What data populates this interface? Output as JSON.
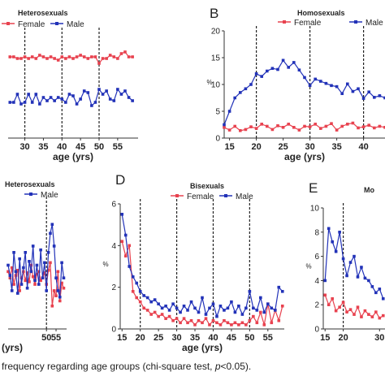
{
  "colors": {
    "female": "#e8424f",
    "male": "#2232b8",
    "axis": "#333333",
    "text": "#222222"
  },
  "caption": {
    "prefix": "frequency regarding age groups (chi-square test, ",
    "p": "p",
    "suffix": "<0.05)."
  },
  "chart_data": [
    {
      "id": "A",
      "type": "line",
      "title": "Heterosexuals",
      "panel_letter": "",
      "xlabel": "age (yrs)",
      "ylabel": "",
      "xlim": [
        25.5,
        60.5
      ],
      "ylim": [
        30,
        95
      ],
      "xticks": [
        "30",
        "35",
        "40",
        "45",
        "50",
        "55"
      ],
      "xtick_values": [
        30,
        35,
        40,
        45,
        50,
        55
      ],
      "yticks": [],
      "vlines": [
        30,
        40,
        50
      ],
      "legend": [
        "Female",
        "Male"
      ],
      "legend_position": "top",
      "series": [
        {
          "name": "Female",
          "x": [
            26,
            27,
            28,
            29,
            30,
            31,
            32,
            33,
            34,
            35,
            36,
            37,
            38,
            39,
            40,
            41,
            42,
            43,
            44,
            45,
            46,
            47,
            48,
            49,
            50,
            51,
            52,
            53,
            54,
            55,
            56,
            57,
            58,
            59
          ],
          "values": [
            80,
            80,
            79,
            79,
            80,
            79,
            80,
            79,
            81,
            80,
            79,
            80,
            79,
            78,
            80,
            79,
            80,
            79,
            80,
            81,
            80,
            79,
            80,
            80,
            76,
            79,
            79,
            81,
            80,
            79,
            82,
            83,
            80,
            80
          ]
        },
        {
          "name": "Male",
          "x": [
            26,
            27,
            28,
            29,
            30,
            31,
            32,
            33,
            34,
            35,
            36,
            37,
            38,
            39,
            40,
            41,
            42,
            43,
            44,
            45,
            46,
            47,
            48,
            49,
            50,
            51,
            52,
            53,
            54,
            55,
            56,
            57,
            58,
            59
          ],
          "values": [
            52,
            52,
            57,
            51,
            52,
            57,
            52,
            57,
            51,
            55,
            53,
            55,
            53,
            55,
            54,
            52,
            57,
            56,
            51,
            54,
            59,
            58,
            50,
            52,
            60,
            57,
            59,
            54,
            53,
            60,
            57,
            59,
            55,
            53
          ]
        }
      ]
    },
    {
      "id": "B",
      "type": "line",
      "title": "Homosexuals",
      "panel_letter": "B",
      "xlabel": "age (yrs)",
      "ylabel": "%",
      "xlim": [
        14,
        44
      ],
      "ylim": [
        0,
        20
      ],
      "xticks": [
        "15",
        "20",
        "25",
        "30",
        "35",
        "40"
      ],
      "xtick_values": [
        15,
        20,
        25,
        30,
        35,
        40
      ],
      "yticks": [
        "0",
        "5",
        "10",
        "15",
        "20"
      ],
      "ytick_values": [
        0,
        5,
        10,
        15,
        20
      ],
      "vlines": [
        20,
        30,
        40
      ],
      "legend": [
        "Female",
        "Male"
      ],
      "legend_position": "top",
      "series": [
        {
          "name": "Female",
          "x": [
            14,
            15,
            16,
            17,
            18,
            19,
            20,
            21,
            22,
            23,
            24,
            25,
            26,
            27,
            28,
            29,
            30,
            31,
            32,
            33,
            34,
            35,
            36,
            37,
            38,
            39,
            40,
            41,
            42,
            43,
            44
          ],
          "values": [
            2.0,
            1.5,
            2.2,
            1.4,
            1.6,
            2.1,
            1.8,
            2.6,
            2.2,
            1.6,
            2.3,
            2.0,
            2.6,
            2.0,
            1.5,
            2.2,
            2.1,
            2.6,
            1.8,
            2.2,
            2.7,
            1.5,
            2.2,
            2.6,
            2.8,
            1.9,
            2.1,
            2.4,
            1.9,
            2.2,
            2.0
          ]
        },
        {
          "name": "Male",
          "x": [
            14,
            15,
            16,
            17,
            18,
            19,
            20,
            21,
            22,
            23,
            24,
            25,
            26,
            27,
            28,
            29,
            30,
            31,
            32,
            33,
            34,
            35,
            36,
            37,
            38,
            39,
            40,
            41,
            42,
            43,
            44
          ],
          "values": [
            2.5,
            5.0,
            7.5,
            8.5,
            9.2,
            10.0,
            12.0,
            11.5,
            12.5,
            13.0,
            12.8,
            14.5,
            13.2,
            14.1,
            12.7,
            11.3,
            9.8,
            11.0,
            10.6,
            10.2,
            9.8,
            9.6,
            8.3,
            10.1,
            8.7,
            9.2,
            7.4,
            8.6,
            7.6,
            7.9,
            7.5
          ]
        }
      ]
    },
    {
      "id": "C",
      "type": "line",
      "title": "Heterosexuals",
      "panel_letter": "",
      "xlabel": "(yrs)",
      "ylabel": "",
      "xlim": [
        30,
        60.5
      ],
      "ylim": [
        0,
        10
      ],
      "xticks": [
        "50",
        "55"
      ],
      "xtick_values": [
        50,
        55
      ],
      "yticks": [],
      "vlines": [
        50
      ],
      "legend": [
        "Male"
      ],
      "legend_position": "top",
      "series": [
        {
          "name": "Female",
          "x": [
            30,
            31,
            32,
            33,
            34,
            35,
            36,
            37,
            38,
            39,
            40,
            41,
            42,
            43,
            44,
            45,
            46,
            47,
            48,
            49,
            50,
            51,
            52,
            53,
            54,
            55,
            56,
            57,
            58,
            59
          ],
          "values": [
            4.5,
            4.0,
            4.8,
            3.5,
            4.2,
            4.6,
            3.0,
            4.0,
            4.5,
            3.8,
            4.4,
            3.7,
            5.0,
            4.1,
            3.5,
            4.3,
            4.5,
            3.8,
            4.0,
            4.4,
            3.5,
            4.6,
            5.2,
            1.8,
            3.0,
            2.6,
            4.5,
            2.2,
            3.6,
            3.2
          ]
        },
        {
          "name": "Male",
          "x": [
            30,
            31,
            32,
            33,
            34,
            35,
            36,
            37,
            38,
            39,
            40,
            41,
            42,
            43,
            44,
            45,
            46,
            47,
            48,
            49,
            50,
            51,
            52,
            53,
            54,
            55,
            56,
            57,
            58,
            59
          ],
          "values": [
            5.0,
            4.2,
            3.0,
            6.0,
            4.5,
            2.8,
            5.5,
            3.5,
            4.8,
            6.0,
            3.2,
            5.3,
            4.5,
            6.5,
            3.8,
            5.0,
            3.5,
            6.2,
            4.0,
            5.2,
            3.0,
            6.0,
            7.5,
            8.2,
            6.5,
            4.0,
            3.0,
            2.5,
            5.2,
            4.0
          ]
        }
      ]
    },
    {
      "id": "D",
      "type": "line",
      "title": "Bisexuals",
      "panel_letter": "D",
      "xlabel": "age (yrs)",
      "ylabel": "%",
      "xlim": [
        14.5,
        59.5
      ],
      "ylim": [
        0,
        6
      ],
      "xticks": [
        "15",
        "20",
        "25",
        "30",
        "35",
        "40",
        "45",
        "50",
        "55"
      ],
      "xtick_values": [
        15,
        20,
        25,
        30,
        35,
        40,
        45,
        50,
        55
      ],
      "yticks": [
        "0",
        "2",
        "4",
        "6"
      ],
      "ytick_values": [
        0,
        2,
        4,
        6
      ],
      "vlines": [
        20,
        30,
        40,
        50
      ],
      "legend": [
        "Female",
        "Male"
      ],
      "legend_position": "top",
      "series": [
        {
          "name": "Female",
          "x": [
            15,
            16,
            17,
            18,
            19,
            20,
            21,
            22,
            23,
            24,
            25,
            26,
            27,
            28,
            29,
            30,
            31,
            32,
            33,
            34,
            35,
            36,
            37,
            38,
            39,
            40,
            41,
            42,
            43,
            44,
            45,
            46,
            47,
            48,
            49,
            50,
            51,
            52,
            53,
            54,
            55,
            56,
            57,
            58,
            59
          ],
          "values": [
            4.2,
            3.5,
            4.0,
            1.8,
            1.5,
            1.3,
            1.0,
            0.9,
            0.7,
            0.8,
            0.6,
            0.7,
            0.5,
            0.6,
            0.4,
            0.5,
            0.3,
            0.5,
            0.3,
            0.4,
            0.2,
            0.4,
            0.3,
            0.5,
            0.2,
            0.4,
            0.3,
            0.2,
            0.4,
            0.3,
            0.2,
            0.3,
            0.2,
            0.3,
            0.2,
            0.4,
            0.6,
            0.3,
            0.8,
            0.2,
            1.2,
            0.3,
            0.9,
            0.4,
            1.1
          ]
        },
        {
          "name": "Male",
          "x": [
            15,
            16,
            17,
            18,
            19,
            20,
            21,
            22,
            23,
            24,
            25,
            26,
            27,
            28,
            29,
            30,
            31,
            32,
            33,
            34,
            35,
            36,
            37,
            38,
            39,
            40,
            41,
            42,
            43,
            44,
            45,
            46,
            47,
            48,
            49,
            50,
            51,
            52,
            53,
            54,
            55,
            56,
            57,
            58,
            59
          ],
          "values": [
            5.5,
            4.5,
            3.0,
            2.5,
            2.2,
            1.8,
            1.6,
            1.5,
            1.3,
            1.4,
            1.2,
            1.0,
            1.1,
            0.9,
            1.2,
            1.0,
            0.8,
            1.1,
            0.9,
            1.3,
            1.0,
            0.8,
            1.5,
            0.7,
            1.0,
            1.2,
            0.6,
            1.1,
            0.9,
            1.0,
            1.3,
            0.8,
            1.1,
            0.7,
            1.0,
            1.8,
            1.0,
            0.9,
            1.5,
            0.8,
            1.2,
            1.0,
            0.9,
            2.0,
            1.8
          ]
        }
      ]
    },
    {
      "id": "E",
      "type": "line",
      "title": "Mo",
      "panel_letter": "E",
      "xlabel": "",
      "ylabel": "%",
      "xlim": [
        14.5,
        31.5
      ],
      "ylim": [
        0,
        10
      ],
      "xticks": [
        "15",
        "20",
        "30"
      ],
      "xtick_values": [
        15,
        20,
        30
      ],
      "yticks": [
        "0",
        "2",
        "4",
        "6",
        "8",
        "10"
      ],
      "ytick_values": [
        0,
        2,
        4,
        6,
        8,
        10
      ],
      "vlines": [
        20
      ],
      "legend": [],
      "legend_position": "top",
      "series": [
        {
          "name": "Female",
          "x": [
            15,
            16,
            17,
            18,
            19,
            20,
            21,
            22,
            23,
            24,
            25,
            26,
            27,
            28,
            29,
            30,
            31
          ],
          "values": [
            2.8,
            2.0,
            2.5,
            1.5,
            1.8,
            2.2,
            1.4,
            1.6,
            1.2,
            1.8,
            1.0,
            1.5,
            1.2,
            1.0,
            1.4,
            0.9,
            1.1
          ]
        },
        {
          "name": "Male",
          "x": [
            15,
            16,
            17,
            18,
            19,
            20,
            21,
            22,
            23,
            24,
            25,
            26,
            27,
            28,
            29,
            30,
            31
          ],
          "values": [
            4.0,
            8.3,
            7.2,
            6.4,
            8.0,
            5.8,
            4.4,
            5.5,
            6.0,
            4.3,
            5.1,
            4.2,
            4.0,
            3.5,
            3.0,
            3.3,
            2.5
          ]
        }
      ]
    }
  ]
}
